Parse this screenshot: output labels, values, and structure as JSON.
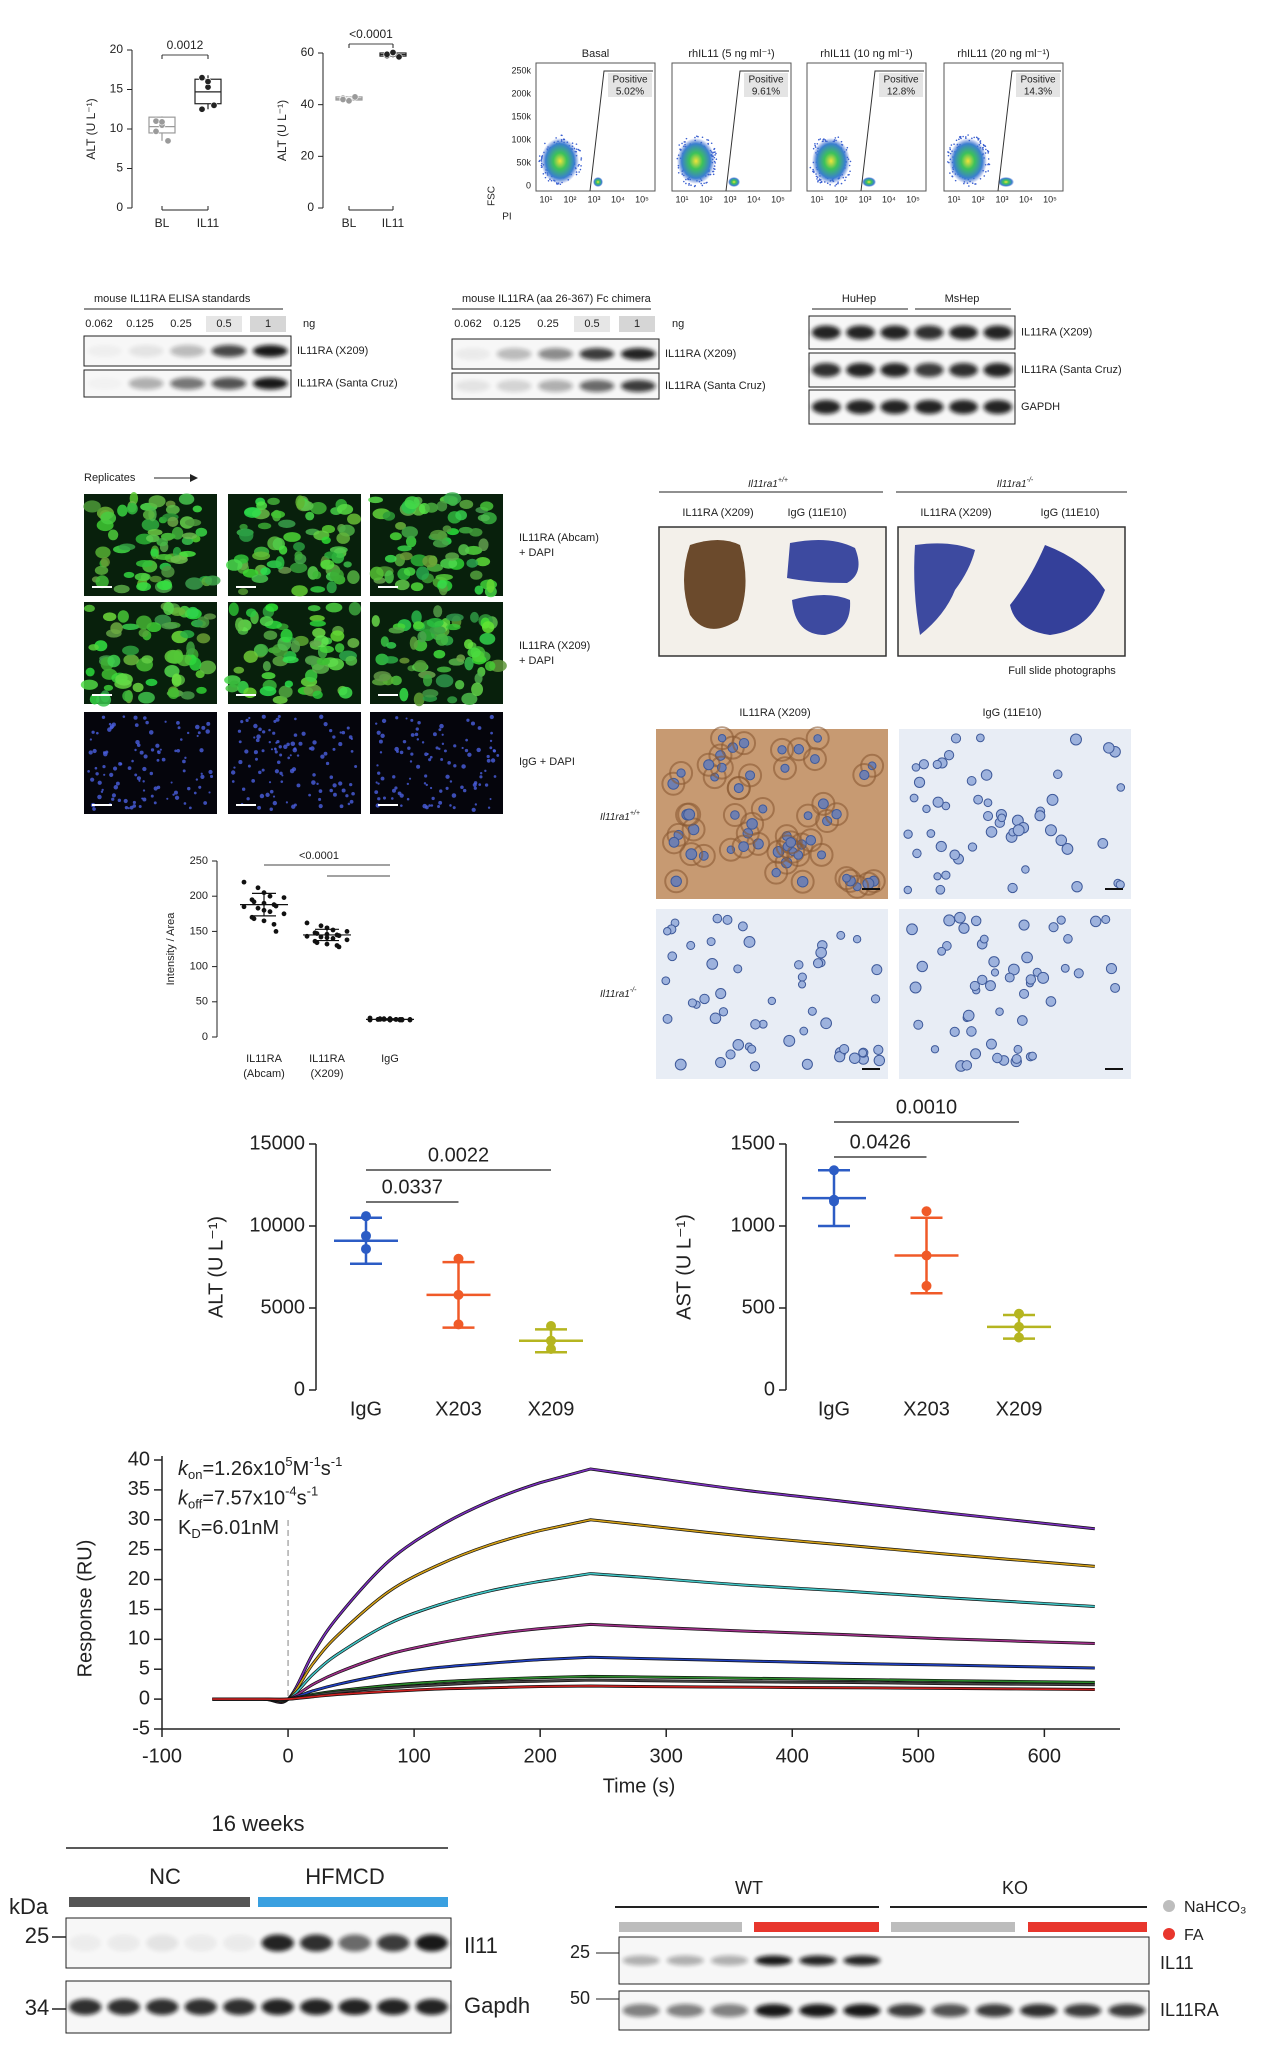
{
  "chart_data": [
    {
      "type": "box",
      "ylabel": "ALT (U L⁻¹)",
      "categories": [
        "BL",
        "IL11"
      ],
      "ylim": [
        0,
        20
      ],
      "yticks": [
        0,
        5,
        10,
        15,
        20
      ],
      "points": [
        [
          11,
          10.5,
          8.5,
          9.7,
          10.9
        ],
        [
          16.5,
          15.3,
          13,
          12.5,
          16
        ]
      ],
      "boxes": [
        {
          "min": 8.5,
          "q1": 9.5,
          "median": 10.3,
          "q3": 11.5,
          "max": 11.6
        },
        {
          "min": 12.5,
          "q1": 13.2,
          "median": 14.7,
          "q3": 16.3,
          "max": 16.8
        }
      ],
      "colors": [
        "#9a9a9a",
        "#222222"
      ],
      "comparisons": [
        {
          "label": "0.0012",
          "groups": [
            [
              "BL",
              "IL11"
            ]
          ]
        }
      ]
    },
    {
      "type": "box",
      "ylabel": "ALT (U L⁻¹)",
      "categories": [
        "BL",
        "IL11"
      ],
      "ylim": [
        0,
        60
      ],
      "yticks": [
        0,
        20,
        40,
        60
      ],
      "points": [
        [
          42.5,
          41.8,
          43,
          42,
          41.5
        ],
        [
          59,
          60,
          58.5,
          59.5,
          60.2
        ]
      ],
      "boxes": [
        {
          "min": 41.3,
          "q1": 41.8,
          "median": 42.3,
          "q3": 43,
          "max": 43.3
        },
        {
          "min": 58.3,
          "q1": 58.8,
          "median": 59.4,
          "q3": 60,
          "max": 60.5
        }
      ],
      "colors": [
        "#9a9a9a",
        "#222222"
      ],
      "comparisons": [
        {
          "label": "<0.0001",
          "groups": [
            [
              "BL",
              "IL11"
            ]
          ]
        }
      ]
    },
    {
      "type": "dot",
      "ylabel": "Intensity / Area",
      "categories": [
        "IL11RA (Abcam)",
        "IL11RA (X209)",
        "IgG"
      ],
      "ylim": [
        0,
        250
      ],
      "yticks": [
        0,
        50,
        100,
        150,
        200,
        250
      ],
      "points": [
        [
          220,
          212,
          205,
          200,
          198,
          195,
          192,
          190,
          188,
          186,
          185,
          183,
          180,
          178,
          175,
          170,
          168,
          165,
          160,
          150
        ],
        [
          162,
          158,
          155,
          152,
          150,
          148,
          147,
          146,
          145,
          144,
          143,
          142,
          141,
          140,
          138,
          136,
          134,
          132,
          130,
          128
        ],
        [
          27,
          26,
          26,
          25,
          25,
          25,
          25,
          24,
          24,
          24,
          24,
          25,
          26,
          25,
          24,
          25,
          26,
          24,
          25,
          25
        ]
      ],
      "means": [
        188,
        145,
        25
      ],
      "errors": [
        16,
        8,
        1
      ],
      "colors": [
        "#111111",
        "#111111",
        "#111111"
      ],
      "comparisons": [
        {
          "label": "<0.0001",
          "groups": [
            [
              "IL11RA (Abcam)",
              "IgG"
            ],
            [
              "IL11RA (X209)",
              "IgG"
            ]
          ]
        }
      ]
    },
    {
      "type": "dot",
      "ylabel": "ALT (U L⁻¹)",
      "categories": [
        "IgG",
        "X203",
        "X209"
      ],
      "ylim": [
        0,
        15000
      ],
      "yticks": [
        0,
        5000,
        10000,
        15000
      ],
      "points": [
        [
          10600,
          9400,
          8600
        ],
        [
          8000,
          5800,
          4000
        ],
        [
          3900,
          3000,
          2500
        ]
      ],
      "means": [
        9100,
        5800,
        3000
      ],
      "errors": [
        1400,
        2000,
        700
      ],
      "colors": [
        "#2c5cc5",
        "#f05a28",
        "#b5b520"
      ],
      "comparisons": [
        {
          "label": "0.0337",
          "groups": [
            [
              "IgG",
              "X203"
            ]
          ]
        },
        {
          "label": "0.0022",
          "groups": [
            [
              "IgG",
              "X209"
            ]
          ]
        }
      ]
    },
    {
      "type": "dot",
      "ylabel": "AST (U L⁻¹)",
      "categories": [
        "IgG",
        "X203",
        "X209"
      ],
      "ylim": [
        0,
        1500
      ],
      "yticks": [
        0,
        500,
        1000,
        1500
      ],
      "points": [
        [
          1340,
          1160,
          1150
        ],
        [
          1090,
          820,
          635
        ],
        [
          465,
          385,
          320
        ]
      ],
      "means": [
        1170,
        820,
        385
      ],
      "errors": [
        170,
        230,
        72
      ],
      "colors": [
        "#2c5cc5",
        "#f05a28",
        "#b5b520"
      ],
      "comparisons": [
        {
          "label": "0.0426",
          "groups": [
            [
              "IgG",
              "X203"
            ]
          ]
        },
        {
          "label": "0.0010",
          "groups": [
            [
              "IgG",
              "X209"
            ]
          ]
        }
      ]
    },
    {
      "type": "line",
      "xlabel": "Time (s)",
      "ylabel": "Response (RU)",
      "xlim": [
        -100,
        660
      ],
      "ylim": [
        -5,
        40
      ],
      "xticks": [
        -100,
        0,
        100,
        200,
        300,
        400,
        500,
        600
      ],
      "yticks": [
        -5,
        0,
        5,
        10,
        15,
        20,
        25,
        30,
        35,
        40
      ],
      "vline": 0,
      "annotations": [
        [
          {
            "text": "k",
            "style": "italic"
          },
          {
            "text": "on",
            "style": "sub"
          },
          {
            "text": "=1.26x10"
          },
          {
            "text": "5",
            "style": "sup"
          },
          {
            "text": "M"
          },
          {
            "text": "-1",
            "style": "sup"
          },
          {
            "text": "s"
          },
          {
            "text": "-1",
            "style": "sup"
          }
        ],
        [
          {
            "text": "k",
            "style": "italic"
          },
          {
            "text": "off",
            "style": "sub"
          },
          {
            "text": "=7.57x10"
          },
          {
            "text": "-4",
            "style": "sup"
          },
          {
            "text": "s"
          },
          {
            "text": "-1",
            "style": "sup"
          }
        ],
        [
          {
            "text": "K"
          },
          {
            "text": "D",
            "style": "sub"
          },
          {
            "text": "=6.01nM"
          }
        ]
      ],
      "x": [
        -60,
        -20,
        0,
        20,
        40,
        80,
        120,
        160,
        200,
        240,
        280,
        360,
        440,
        520,
        640
      ],
      "series": [
        {
          "color": "#7b2fbe",
          "values": [
            0,
            0,
            0,
            7.7,
            13.9,
            23.1,
            28.9,
            33.1,
            36.2,
            38.5,
            37.3,
            35.0,
            33.1,
            31.2,
            28.5
          ]
        },
        {
          "color": "#d4a017",
          "values": [
            0,
            0,
            0,
            6,
            10.8,
            18,
            22.5,
            25.8,
            28.2,
            30,
            29.1,
            27.3,
            25.8,
            24.3,
            22.2
          ]
        },
        {
          "color": "#40c4c4",
          "values": [
            0,
            0,
            0,
            4.2,
            7.6,
            12.6,
            15.8,
            18.1,
            19.7,
            21,
            20.4,
            19.1,
            18.1,
            17,
            15.5
          ]
        },
        {
          "color": "#a0308a",
          "values": [
            0,
            0,
            0,
            2.5,
            4.5,
            7.5,
            9.4,
            10.8,
            11.8,
            12.5,
            12.1,
            11.4,
            10.8,
            10.1,
            9.3
          ]
        },
        {
          "color": "#2040c0",
          "values": [
            0,
            0,
            0,
            1.4,
            2.5,
            4.2,
            5.3,
            6,
            6.6,
            7,
            6.8,
            6.4,
            6,
            5.7,
            5.2
          ]
        },
        {
          "color": "#2a8a2a",
          "values": [
            0,
            0,
            0,
            0.8,
            1.4,
            2.3,
            2.9,
            3.3,
            3.6,
            3.8,
            3.7,
            3.5,
            3.3,
            3.1,
            2.8
          ]
        },
        {
          "color": "#444444",
          "values": [
            0,
            0,
            0,
            0.6,
            1.2,
            1.9,
            2.4,
            2.8,
            3,
            3.2,
            3.1,
            2.9,
            2.8,
            2.6,
            2.4
          ]
        },
        {
          "color": "#cc2020",
          "values": [
            0,
            0,
            0,
            0.4,
            0.8,
            1.3,
            1.7,
            1.9,
            2.1,
            2.2,
            2.1,
            2,
            1.9,
            1.8,
            1.6
          ]
        }
      ]
    }
  ],
  "flow": {
    "titles": [
      "Basal",
      "rhIL11 (5 ng ml⁻¹)",
      "rhIL11 (10 ng ml⁻¹)",
      "rhIL11 (20 ng ml⁻¹)"
    ],
    "gate_label": "Positive",
    "percents": [
      "5.02%",
      "9.61%",
      "12.8%",
      "14.3%"
    ],
    "yticks": [
      "250k",
      "200k",
      "150k",
      "100k",
      "50k",
      "0"
    ],
    "xticks": [
      "10¹",
      "10²",
      "10³",
      "10⁴",
      "10⁵"
    ],
    "ylabel": "FSC",
    "xlabel": "PI"
  },
  "blots_standards": [
    {
      "title": "mouse IL11RA ELISA standards",
      "loadings": [
        "0.062",
        "0.125",
        "0.25",
        "0.5",
        "1"
      ],
      "unit": "ng",
      "rows": [
        "IL11RA (X209)",
        "IL11RA (Santa Cruz)"
      ]
    },
    {
      "title": "mouse IL11RA (aa 26-367) Fc chimera",
      "loadings": [
        "0.062",
        "0.125",
        "0.25",
        "0.5",
        "1"
      ],
      "unit": "ng",
      "rows": [
        "IL11RA (X209)",
        "IL11RA (Santa Cruz)"
      ]
    }
  ],
  "blot_cells": {
    "groups": [
      "HuHep",
      "MsHep"
    ],
    "rows": [
      "IL11RA (X209)",
      "IL11RA (Santa Cruz)",
      "GAPDH"
    ]
  },
  "immunofluorescence": {
    "header": "Replicates",
    "rows": [
      [
        "IL11RA (Abcam)",
        "+ DAPI"
      ],
      [
        "IL11RA (X209)",
        "+ DAPI"
      ],
      [
        "IgG + DAPI"
      ]
    ]
  },
  "slides": {
    "genotypes": [
      {
        "gene": "Il11ra1",
        "allele": "+/+"
      },
      {
        "gene": "Il11ra1",
        "allele": "-/-"
      }
    ],
    "stains": [
      "IL11RA (X209)",
      "IgG (11E10)"
    ],
    "caption": "Full slide photographs"
  },
  "ihc": {
    "stains": [
      "IL11RA (X209)",
      "IgG (11E10)"
    ],
    "genotypes": [
      {
        "gene": "Il11ra1",
        "allele": "+/+"
      },
      {
        "gene": "Il11ra1",
        "allele": "-/-"
      }
    ]
  },
  "western_nash": {
    "title": "16 weeks",
    "groups": [
      "NC",
      "HFMCD"
    ],
    "group_colors": [
      "#555555",
      "#3aa0e0"
    ],
    "unit": "kDa",
    "markers": [
      "25",
      "34"
    ],
    "rows": [
      "Il11",
      "Gapdh"
    ]
  },
  "western_ko": {
    "groups": [
      "WT",
      "KO"
    ],
    "legend": [
      "NaHCO₃",
      "FA"
    ],
    "legend_colors": [
      "#bdbdbd",
      "#e8362d"
    ],
    "markers": [
      "25",
      "50"
    ],
    "rows": [
      "IL11",
      "IL11RA"
    ]
  }
}
